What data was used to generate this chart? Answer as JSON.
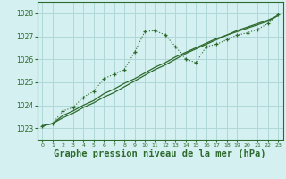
{
  "background_color": "#d4f0f0",
  "grid_color": "#b0d8d8",
  "line_color": "#2d6a2d",
  "xlabel": "Graphe pression niveau de la mer (hPa)",
  "xlabel_fontsize": 7.5,
  "xticks": [
    0,
    1,
    2,
    3,
    4,
    5,
    6,
    7,
    8,
    9,
    10,
    11,
    12,
    13,
    14,
    15,
    16,
    17,
    18,
    19,
    20,
    21,
    22,
    23
  ],
  "yticks": [
    1023,
    1024,
    1025,
    1026,
    1027,
    1028
  ],
  "ylim": [
    1022.5,
    1028.5
  ],
  "xlim": [
    -0.5,
    23.5
  ],
  "hours": [
    0,
    1,
    2,
    3,
    4,
    5,
    6,
    7,
    8,
    9,
    10,
    11,
    12,
    13,
    14,
    15,
    16,
    17,
    18,
    19,
    20,
    21,
    22,
    23
  ],
  "line_dotted": [
    1023.1,
    1023.2,
    1023.75,
    1023.9,
    1024.35,
    1024.6,
    1025.15,
    1025.35,
    1025.55,
    1026.3,
    1027.2,
    1027.25,
    1027.05,
    1026.55,
    1026.0,
    1025.85,
    1026.55,
    1026.65,
    1026.85,
    1027.05,
    1027.15,
    1027.3,
    1027.55,
    1027.95
  ],
  "line_solid1": [
    1023.1,
    1023.2,
    1023.45,
    1023.65,
    1023.9,
    1024.1,
    1024.35,
    1024.55,
    1024.8,
    1025.05,
    1025.3,
    1025.55,
    1025.75,
    1026.0,
    1026.25,
    1026.45,
    1026.65,
    1026.85,
    1027.05,
    1027.25,
    1027.4,
    1027.55,
    1027.7,
    1027.9
  ],
  "line_solid2": [
    1023.1,
    1023.2,
    1023.55,
    1023.75,
    1024.0,
    1024.2,
    1024.5,
    1024.7,
    1024.95,
    1025.15,
    1025.4,
    1025.65,
    1025.85,
    1026.1,
    1026.3,
    1026.5,
    1026.7,
    1026.9,
    1027.05,
    1027.2,
    1027.35,
    1027.5,
    1027.65,
    1027.9
  ]
}
